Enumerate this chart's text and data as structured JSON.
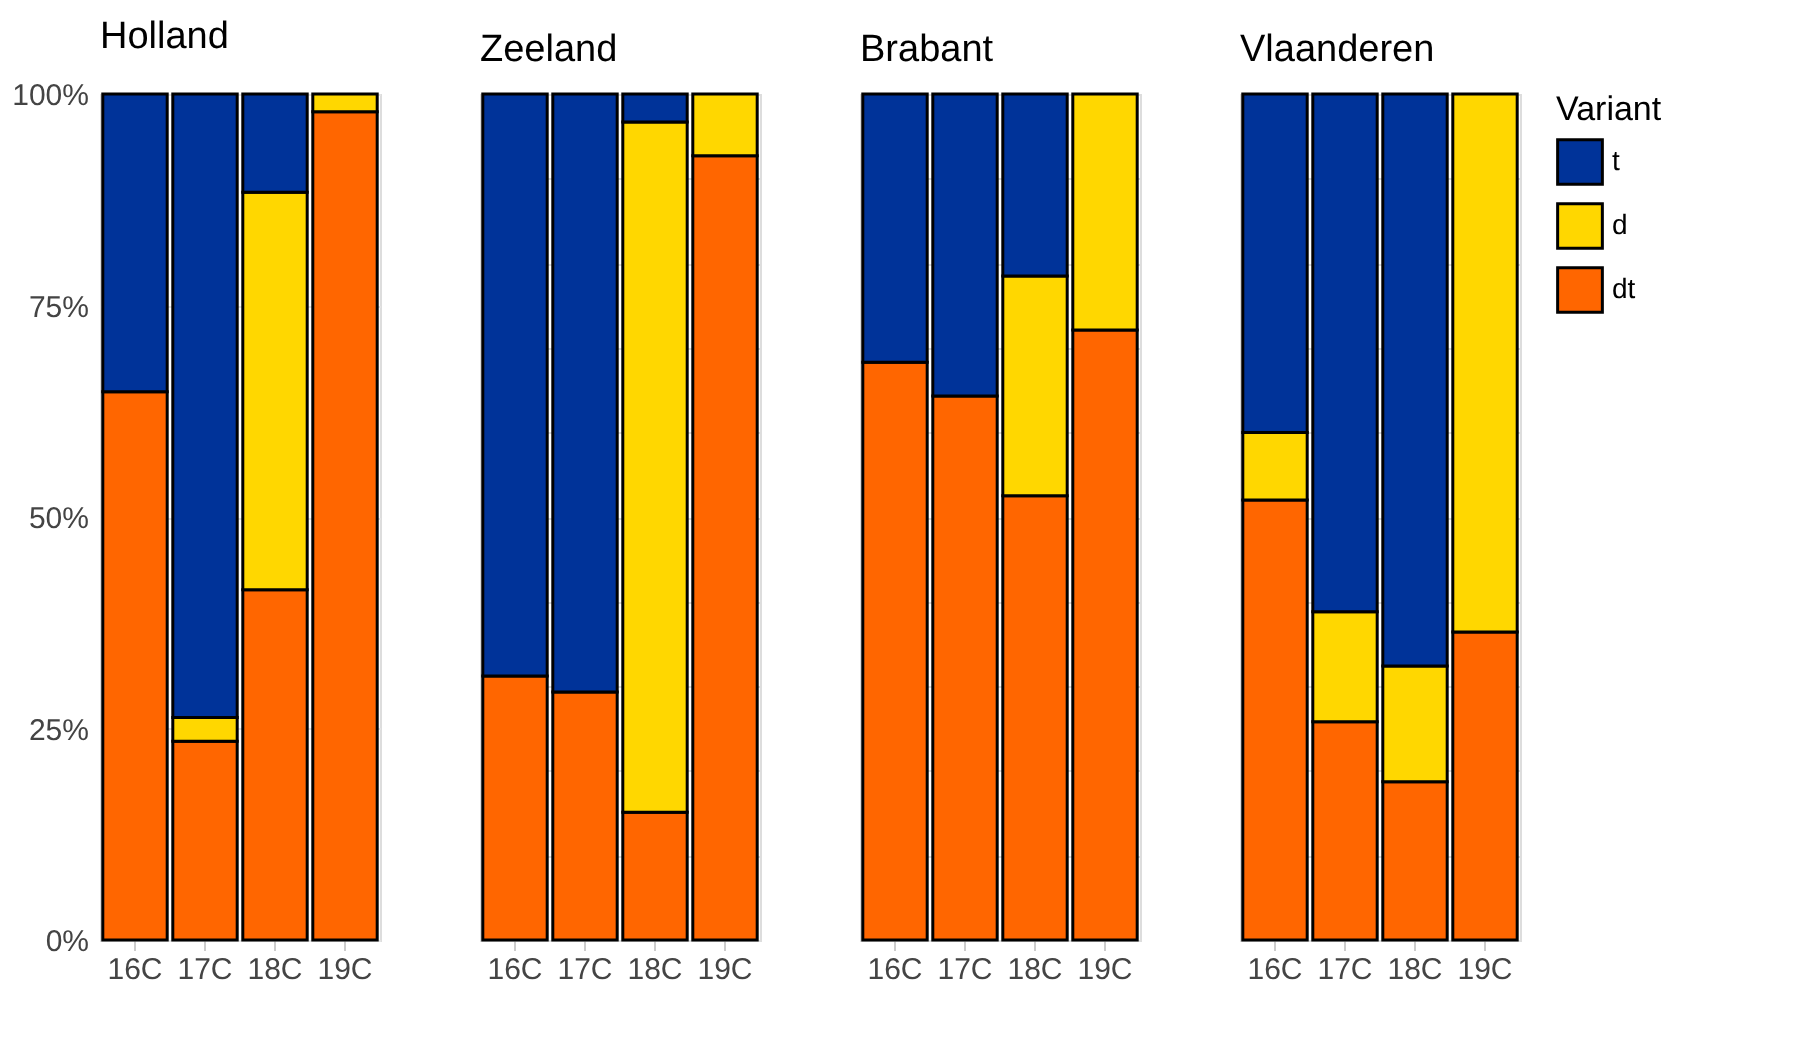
{
  "chart_data": [
    {
      "type": "bar",
      "title": "Holland",
      "stacked": true,
      "categories": [
        "16C",
        "17C",
        "18C",
        "19C"
      ],
      "ylim": [
        0,
        100
      ],
      "yticks": [
        {
          "value": 0,
          "label": "0%"
        },
        {
          "value": 25,
          "label": "25%"
        },
        {
          "value": 50,
          "label": "50%"
        },
        {
          "value": 75,
          "label": "75%"
        },
        {
          "value": 100,
          "label": "100%"
        }
      ],
      "grid": true,
      "series": [
        {
          "color": "#ff6600",
          "values": [
            64.8,
            23.5,
            41.4,
            97.9
          ]
        },
        {
          "color": "#ffd700",
          "values": [
            0,
            2.8,
            47.0,
            2.1
          ]
        },
        {
          "color": "#003399",
          "values": [
            35.2,
            73.7,
            11.6,
            0
          ]
        }
      ]
    },
    {
      "type": "bar",
      "title": "Zeeland",
      "stacked": true,
      "categories": [
        "16C",
        "17C",
        "18C",
        "19C"
      ],
      "ylim": [
        0,
        100
      ],
      "tick_labels": "x",
      "grid": true,
      "series": [
        {
          "color": "#ff6600",
          "values": [
            31.2,
            29.3,
            15.1,
            92.7
          ]
        },
        {
          "color": "#ffd700",
          "values": [
            0,
            0,
            81.6,
            7.3
          ]
        },
        {
          "color": "#003399",
          "values": [
            68.8,
            70.7,
            3.3,
            0
          ]
        }
      ]
    },
    {
      "type": "bar",
      "title": "Brabant",
      "stacked": true,
      "categories": [
        "16C",
        "17C",
        "18C",
        "19C"
      ],
      "ylim": [
        0,
        100
      ],
      "tick_labels": "x",
      "grid": true,
      "series": [
        {
          "color": "#ff6600",
          "values": [
            68.3,
            64.3,
            52.5,
            72.1
          ]
        },
        {
          "color": "#ffd700",
          "values": [
            0,
            0,
            26.0,
            27.9
          ]
        },
        {
          "color": "#003399",
          "values": [
            31.7,
            35.7,
            21.5,
            0
          ]
        }
      ]
    },
    {
      "type": "bar",
      "title": "Vlaanderen",
      "stacked": true,
      "categories": [
        "16C",
        "17C",
        "18C",
        "19C"
      ],
      "ylim": [
        0,
        100
      ],
      "tick_labels": "x",
      "grid": true,
      "legend": "right",
      "legend_title": "Variant",
      "series": [
        {
          "name": "dt",
          "color": "#ff6600",
          "values": [
            52.0,
            25.8,
            18.7,
            36.4
          ]
        },
        {
          "name": "d",
          "color": "#ffd700",
          "values": [
            8.0,
            13.0,
            13.7,
            63.6
          ]
        },
        {
          "name": "t",
          "color": "#003399",
          "values": [
            40.0,
            61.2,
            67.6,
            0
          ]
        }
      ]
    }
  ]
}
